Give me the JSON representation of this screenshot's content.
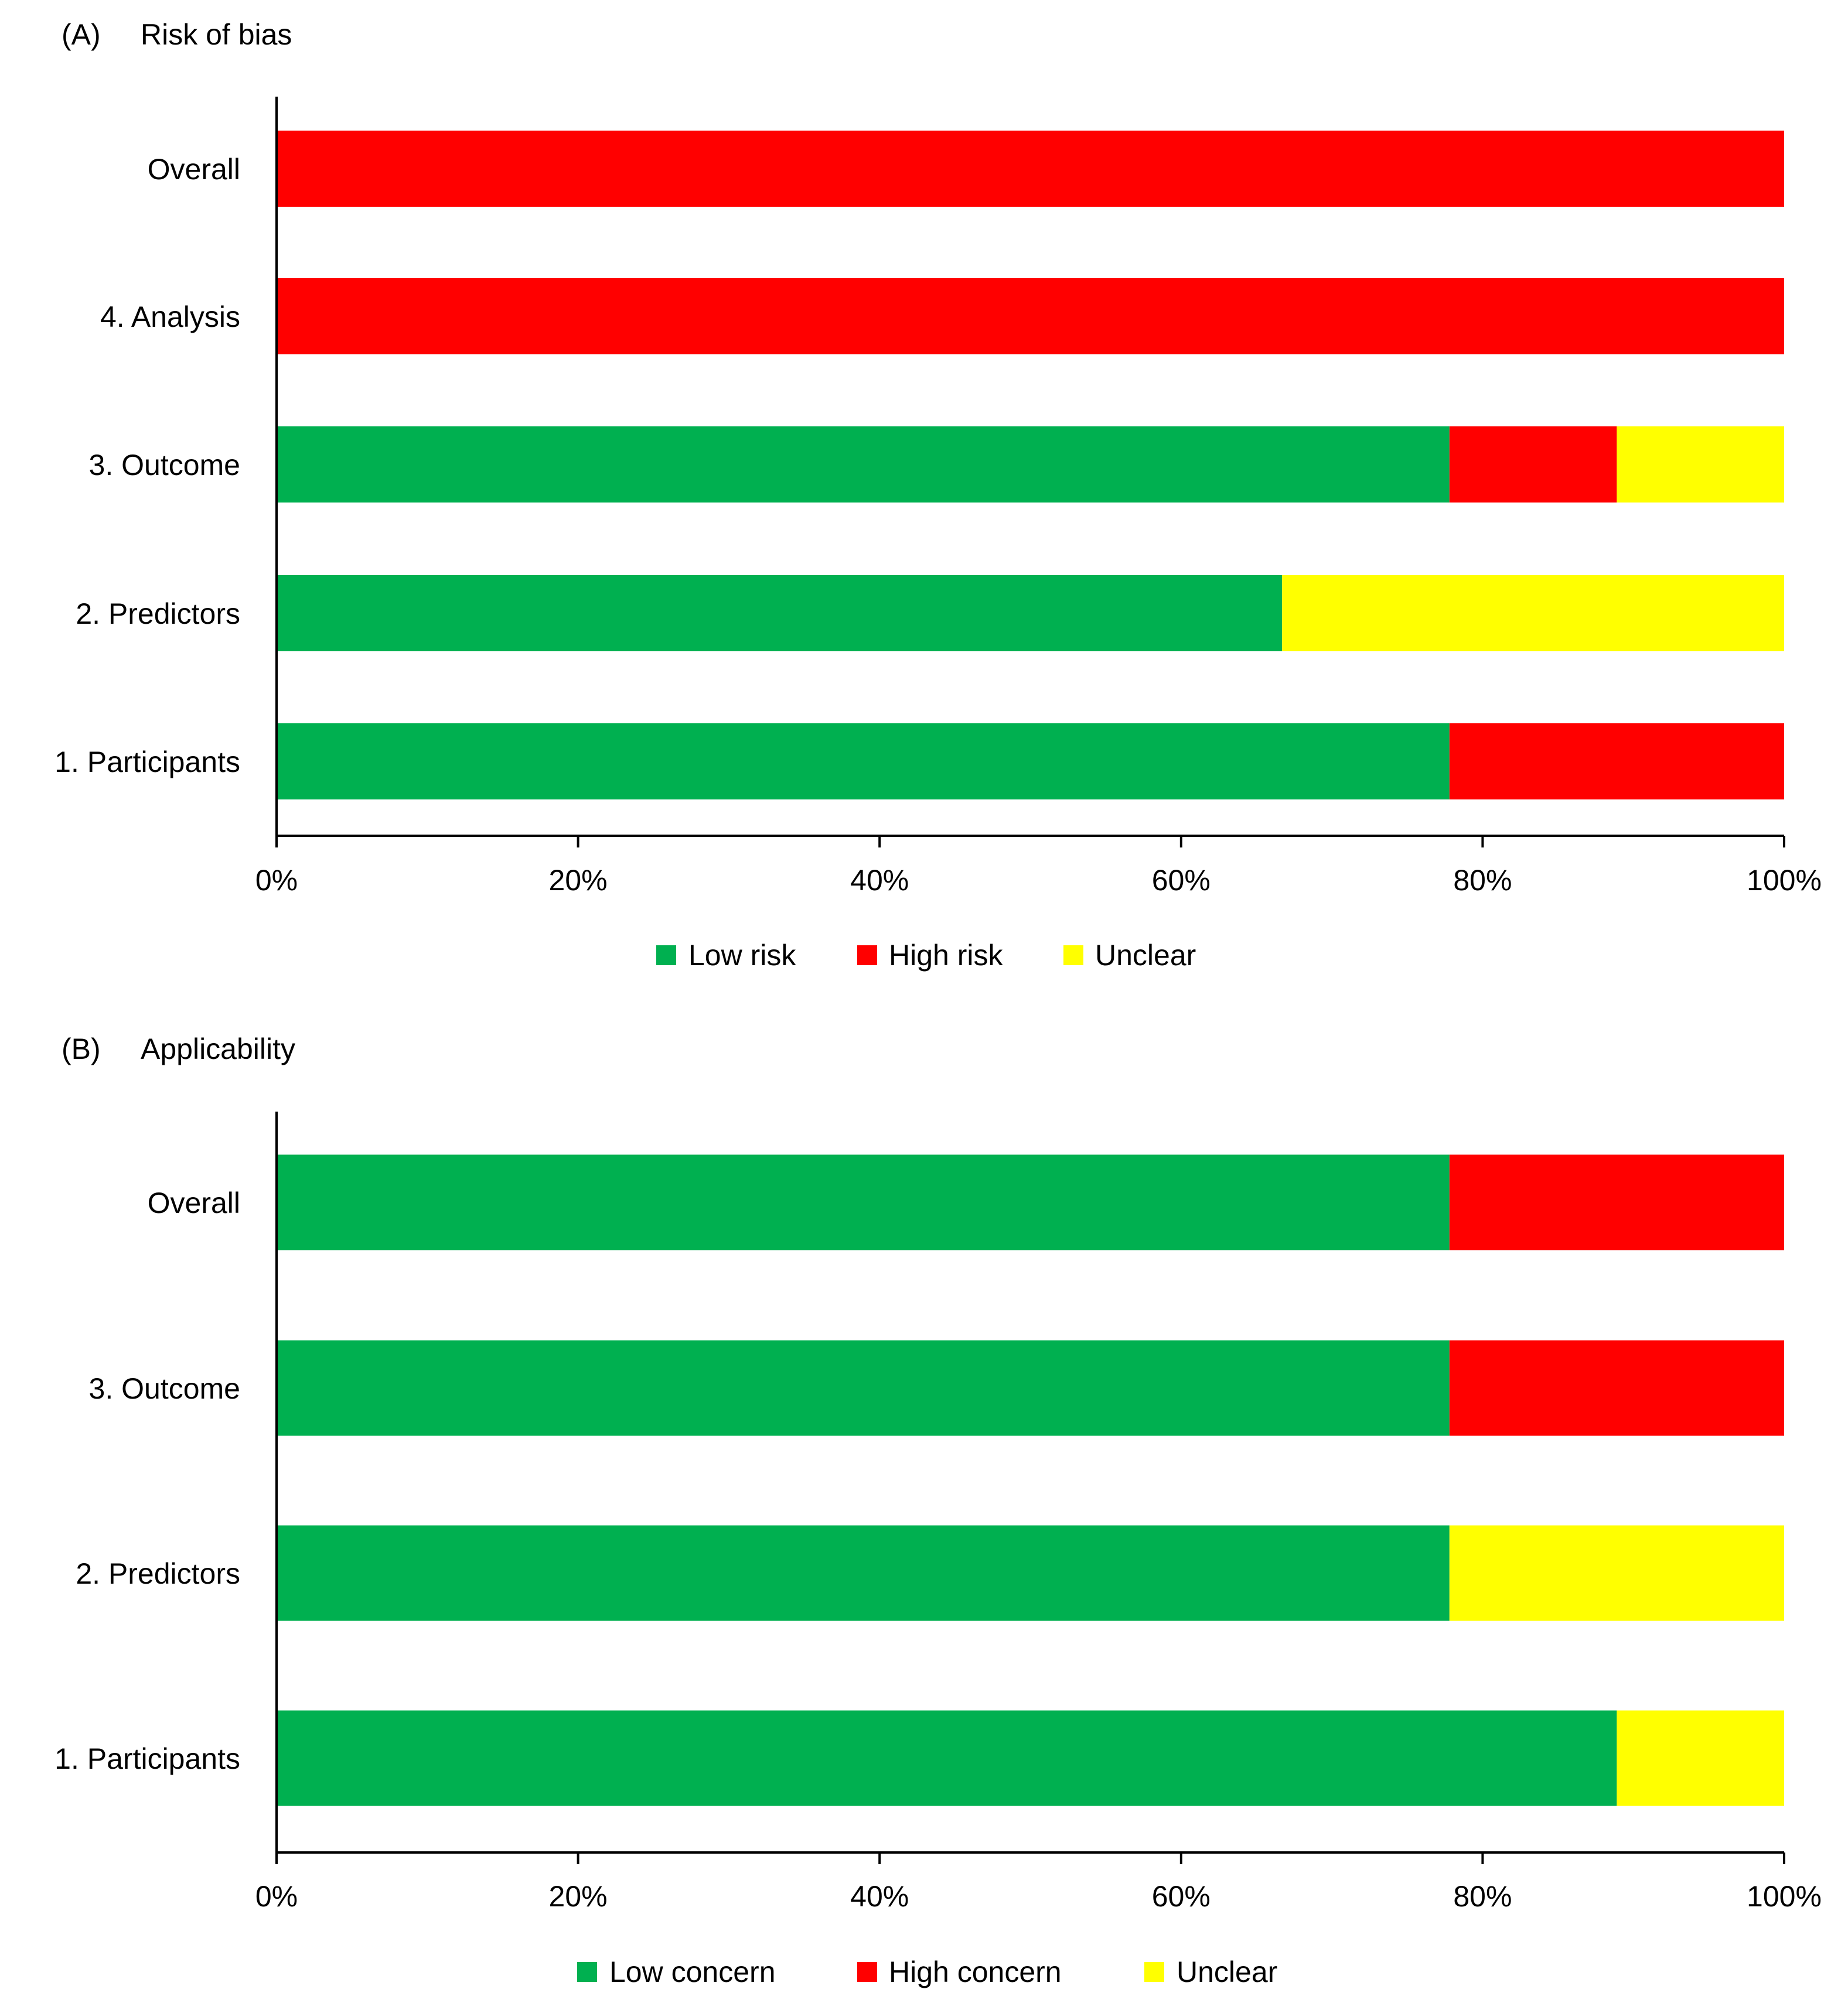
{
  "chart_data": [
    {
      "type": "bar",
      "orientation": "horizontal",
      "stacked": true,
      "panel": "(A)",
      "title": "Risk of bias",
      "categories": [
        "Overall",
        "4. Analysis",
        "3. Outcome",
        "2. Predictors",
        "1. Participants"
      ],
      "series": [
        {
          "name": "Low risk",
          "color": "#00B050",
          "values": [
            0,
            0,
            77.8,
            66.7,
            77.8
          ]
        },
        {
          "name": "High risk",
          "color": "#FF0000",
          "values": [
            100,
            100,
            11.1,
            0,
            22.2
          ]
        },
        {
          "name": "Unclear",
          "color": "#FFFF00",
          "values": [
            0,
            0,
            11.1,
            33.3,
            0
          ]
        }
      ],
      "xlim": [
        0,
        100
      ],
      "xticks": [
        "0%",
        "20%",
        "40%",
        "60%",
        "80%",
        "100%"
      ],
      "xlabel": "",
      "ylabel": "",
      "grid": false,
      "legend": "bottom"
    },
    {
      "type": "bar",
      "orientation": "horizontal",
      "stacked": true,
      "panel": "(B)",
      "title": "Applicability",
      "categories": [
        "Overall",
        "3. Outcome",
        "2. Predictors",
        "1. Participants"
      ],
      "series": [
        {
          "name": "Low concern",
          "color": "#00B050",
          "values": [
            77.8,
            77.8,
            77.8,
            88.9
          ]
        },
        {
          "name": "High concern",
          "color": "#FF0000",
          "values": [
            22.2,
            22.2,
            0,
            0
          ]
        },
        {
          "name": "Unclear",
          "color": "#FFFF00",
          "values": [
            0,
            0,
            22.2,
            11.1
          ]
        }
      ],
      "xlim": [
        0,
        100
      ],
      "xticks": [
        "0%",
        "20%",
        "40%",
        "60%",
        "80%",
        "100%"
      ],
      "xlabel": "",
      "ylabel": "",
      "grid": false,
      "legend": "bottom"
    }
  ]
}
